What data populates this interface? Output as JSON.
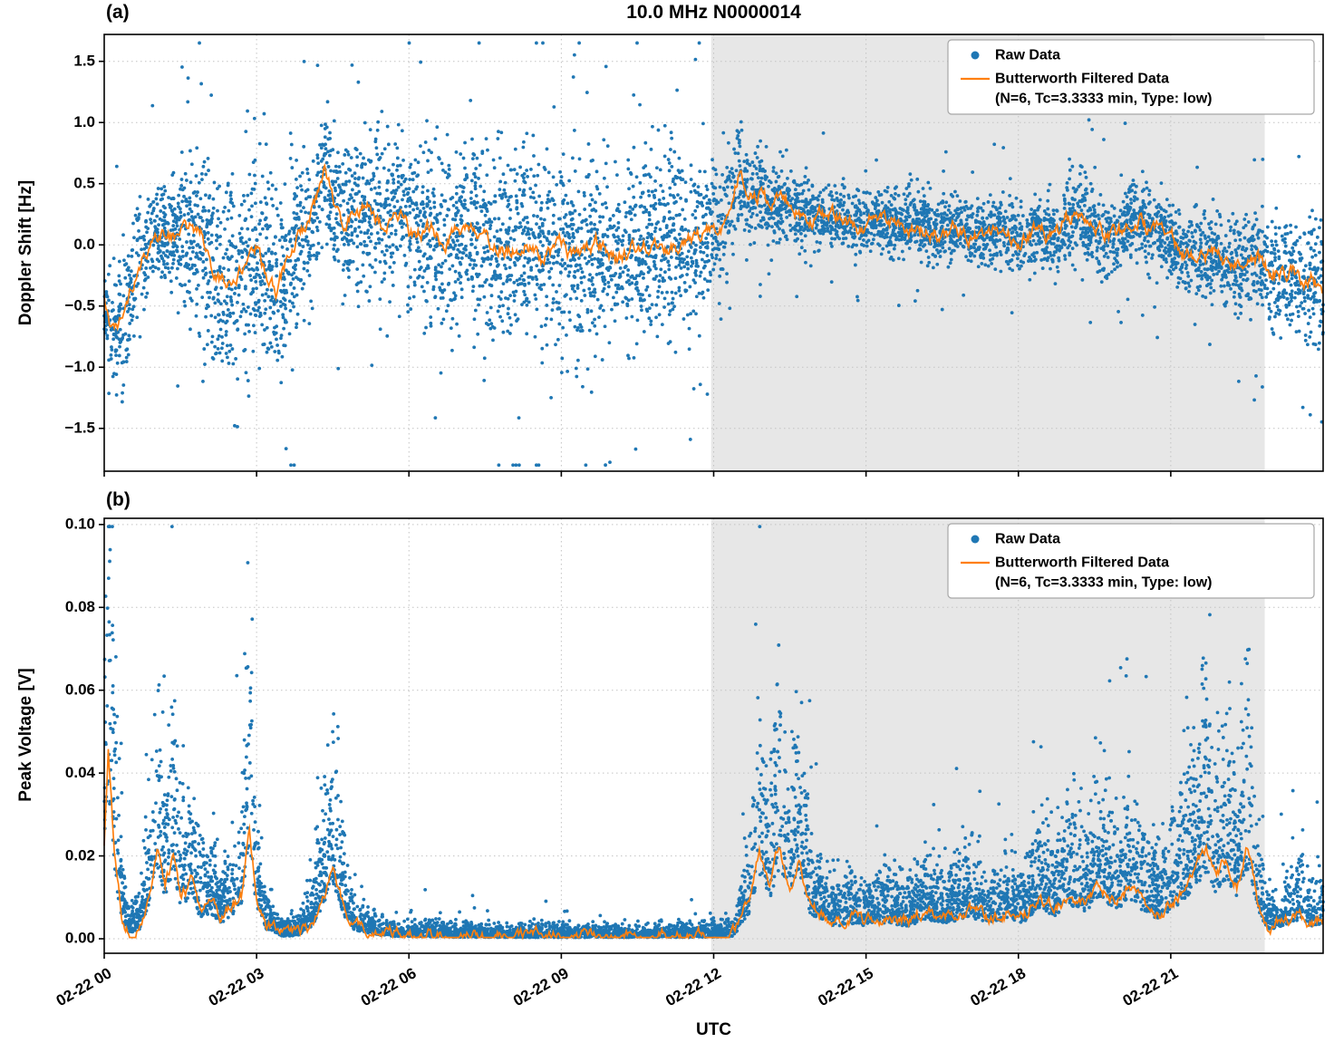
{
  "figure": {
    "xlabel": "UTC"
  },
  "colors": {
    "raw": "#1f77b4",
    "filtered": "#ff7f0e",
    "shade": "#e7e7e7",
    "grid": "#c3c3c3",
    "spine": "#000000",
    "legend_edge": "#a6a6a6",
    "legend_fill": "#ffffff"
  },
  "chart_data": [
    {
      "panel_label": "(a)",
      "type": "scatter",
      "title": "10.0 MHz N0000014",
      "ylabel": "Doppler Shift [Hz]",
      "ylim": [
        -1.85,
        1.72
      ],
      "yticks": [
        -1.5,
        -1.0,
        -0.5,
        0.0,
        0.5,
        1.0,
        1.5
      ],
      "ytick_decimals": 1,
      "xlim_hours": [
        0,
        24
      ],
      "xticks_hours": [
        0,
        3,
        6,
        9,
        12,
        15,
        18,
        21
      ],
      "shade_hours": [
        11.95,
        22.85
      ],
      "legend": {
        "items": [
          {
            "marker": "dot",
            "label": "Raw Data"
          },
          {
            "marker": "line",
            "label": "Butterworth Filtered Data",
            "sublabel": "(N=6, Tc=3.3333 min, Type: low)"
          }
        ]
      },
      "filtered_line": {
        "x": [
          0,
          0.15,
          0.4,
          0.6,
          0.8,
          1.0,
          1.3,
          1.6,
          1.9,
          2.1,
          2.3,
          2.6,
          2.8,
          3.0,
          3.2,
          3.4,
          3.6,
          3.8,
          4.0,
          4.2,
          4.35,
          4.5,
          4.7,
          4.9,
          5.2,
          5.5,
          5.8,
          6.0,
          6.3,
          6.6,
          7.0,
          7.3,
          7.6,
          8.0,
          8.3,
          8.6,
          9.0,
          9.3,
          9.6,
          10.0,
          10.3,
          10.6,
          11.0,
          11.3,
          11.6,
          11.9,
          12.2,
          12.5,
          12.7,
          12.9,
          13.1,
          13.4,
          13.7,
          14.0,
          14.4,
          14.8,
          15.2,
          15.6,
          16.0,
          16.4,
          16.8,
          17.2,
          17.6,
          18.0,
          18.4,
          18.8,
          19.2,
          19.4,
          19.7,
          20.0,
          20.3,
          20.6,
          20.9,
          21.2,
          21.5,
          21.8,
          22.1,
          22.4,
          22.7,
          23.0,
          23.3,
          23.6,
          23.8,
          24.0
        ],
        "y": [
          -0.45,
          -0.75,
          -0.55,
          -0.3,
          -0.05,
          0.1,
          0.05,
          0.15,
          0.1,
          -0.15,
          -0.3,
          -0.35,
          -0.15,
          0.0,
          -0.3,
          -0.4,
          -0.15,
          0.05,
          0.15,
          0.4,
          0.65,
          0.35,
          0.15,
          0.25,
          0.3,
          0.2,
          0.25,
          0.1,
          0.15,
          0.05,
          0.1,
          0.15,
          0.05,
          -0.05,
          0.05,
          -0.1,
          -0.05,
          -0.1,
          0.0,
          -0.05,
          -0.1,
          0.0,
          0.05,
          -0.05,
          0.05,
          0.1,
          0.2,
          0.55,
          0.4,
          0.45,
          0.3,
          0.35,
          0.25,
          0.2,
          0.25,
          0.15,
          0.2,
          0.15,
          0.18,
          0.1,
          0.15,
          0.08,
          0.12,
          0.05,
          0.12,
          0.08,
          0.3,
          0.15,
          0.05,
          0.1,
          0.25,
          0.1,
          0.05,
          -0.05,
          -0.1,
          -0.05,
          -0.15,
          -0.2,
          -0.15,
          -0.25,
          -0.2,
          -0.3,
          -0.25,
          -0.4
        ],
        "jitter": 0.1
      },
      "scatter": {
        "n": 6500,
        "mode": "symmetric",
        "envelope_x": [
          0,
          0.5,
          1,
          1.5,
          2,
          2.5,
          3,
          3.5,
          4,
          4.5,
          5,
          6,
          7,
          8,
          9,
          10,
          11,
          11.8,
          12.3,
          13,
          14,
          15,
          16,
          17,
          18,
          19,
          20,
          21,
          22,
          23,
          24
        ],
        "envelope_spread": [
          0.25,
          0.3,
          0.25,
          0.3,
          0.5,
          0.55,
          0.5,
          0.45,
          0.35,
          0.3,
          0.35,
          0.4,
          0.45,
          0.45,
          0.45,
          0.45,
          0.45,
          0.4,
          0.3,
          0.18,
          0.15,
          0.15,
          0.15,
          0.15,
          0.15,
          0.18,
          0.18,
          0.18,
          0.2,
          0.25,
          0.3
        ],
        "outlier_frac": 0.035,
        "outlier_scale": 2.4,
        "clip": [
          -1.8,
          1.65
        ]
      }
    },
    {
      "panel_label": "(b)",
      "type": "scatter",
      "ylabel": "Peak Voltage [V]",
      "ylim": [
        -0.0035,
        0.1015
      ],
      "yticks": [
        0.0,
        0.02,
        0.04,
        0.06,
        0.08,
        0.1
      ],
      "ytick_decimals": 2,
      "xlim_hours": [
        0,
        24
      ],
      "xticks_hours": [
        0,
        3,
        6,
        9,
        12,
        15,
        18,
        21
      ],
      "xtick_labels": [
        "02-22 00",
        "02-22 03",
        "02-22 06",
        "02-22 09",
        "02-22 12",
        "02-22 15",
        "02-22 18",
        "02-22 21"
      ],
      "shade_hours": [
        11.95,
        22.85
      ],
      "legend": {
        "items": [
          {
            "marker": "dot",
            "label": "Raw Data"
          },
          {
            "marker": "line",
            "label": "Butterworth Filtered Data",
            "sublabel": "(N=6, Tc=3.3333 min, Type: low)"
          }
        ]
      },
      "filtered_line": {
        "x": [
          0,
          0.08,
          0.2,
          0.35,
          0.5,
          0.7,
          0.9,
          1.05,
          1.2,
          1.35,
          1.5,
          1.7,
          1.9,
          2.1,
          2.3,
          2.5,
          2.7,
          2.85,
          3.0,
          3.2,
          3.5,
          3.8,
          4.1,
          4.3,
          4.5,
          4.7,
          4.9,
          5.2,
          5.5,
          6.0,
          6.5,
          7.0,
          8.0,
          9.0,
          10.0,
          11.0,
          12.0,
          12.4,
          12.7,
          12.9,
          13.1,
          13.3,
          13.5,
          13.7,
          13.9,
          14.1,
          14.4,
          14.7,
          15.0,
          15.4,
          15.8,
          16.2,
          16.6,
          17.0,
          17.4,
          17.8,
          18.1,
          18.4,
          18.7,
          19.0,
          19.3,
          19.6,
          19.9,
          20.2,
          20.5,
          20.8,
          21.1,
          21.4,
          21.7,
          21.9,
          22.1,
          22.3,
          22.5,
          22.7,
          22.9,
          23.2,
          23.5,
          23.8,
          24.0
        ],
        "y": [
          0.022,
          0.045,
          0.02,
          0.006,
          0.002,
          0.003,
          0.012,
          0.021,
          0.013,
          0.019,
          0.01,
          0.013,
          0.006,
          0.008,
          0.005,
          0.007,
          0.01,
          0.028,
          0.01,
          0.003,
          0.001,
          0.001,
          0.004,
          0.01,
          0.017,
          0.008,
          0.003,
          0.002,
          0.001,
          0.0008,
          0.0008,
          0.0007,
          0.0006,
          0.0006,
          0.0006,
          0.0006,
          0.0007,
          0.001,
          0.008,
          0.02,
          0.012,
          0.022,
          0.012,
          0.019,
          0.008,
          0.006,
          0.004,
          0.005,
          0.004,
          0.005,
          0.004,
          0.006,
          0.005,
          0.007,
          0.005,
          0.006,
          0.005,
          0.01,
          0.007,
          0.011,
          0.008,
          0.013,
          0.009,
          0.012,
          0.008,
          0.006,
          0.01,
          0.014,
          0.021,
          0.014,
          0.019,
          0.013,
          0.022,
          0.01,
          0.003,
          0.004,
          0.006,
          0.004,
          0.005
        ],
        "jitter": 0.0022
      },
      "scatter": {
        "n": 7000,
        "mode": "positive",
        "center_factor": 1.1,
        "base_spread": 0.0008,
        "spike_frac": 0.03,
        "spike_scale": 2.6,
        "clip": [
          0.0002,
          0.0995
        ]
      }
    }
  ]
}
